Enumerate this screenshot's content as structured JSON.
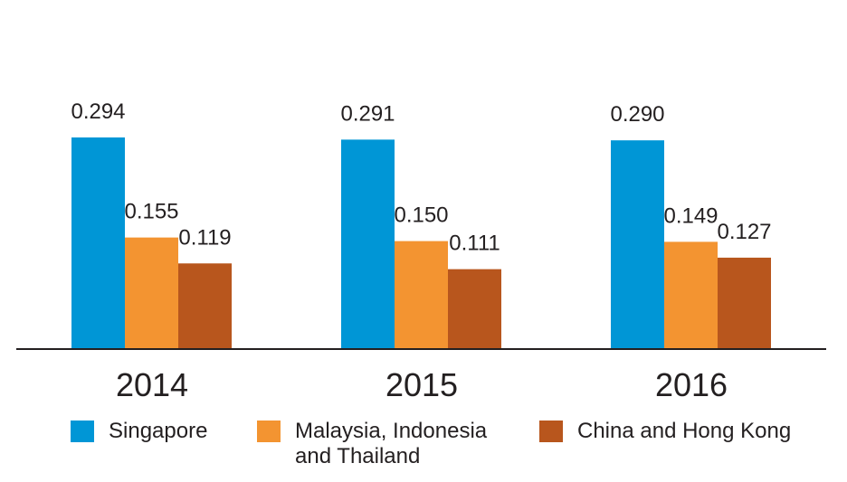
{
  "chart_data": {
    "type": "bar",
    "categories": [
      "2014",
      "2015",
      "2016"
    ],
    "series": [
      {
        "name": "Singapore",
        "values": [
          0.294,
          0.291,
          0.29
        ],
        "labels": [
          "0.294",
          "0.291",
          "0.290"
        ],
        "color": "#0096d6"
      },
      {
        "name": "Malaysia, Indonesia\nand Thailand",
        "values": [
          0.155,
          0.15,
          0.149
        ],
        "labels": [
          "0.155",
          "0.150",
          "0.149"
        ],
        "color": "#f39431"
      },
      {
        "name": "China and Hong Kong",
        "values": [
          0.119,
          0.111,
          0.127
        ],
        "labels": [
          "0.119",
          "0.111",
          "0.127"
        ],
        "color": "#b8561d"
      }
    ],
    "title": "",
    "xlabel": "",
    "ylabel": "",
    "ylim": [
      0,
      0.294
    ],
    "grid": false,
    "legend_position": "bottom"
  }
}
